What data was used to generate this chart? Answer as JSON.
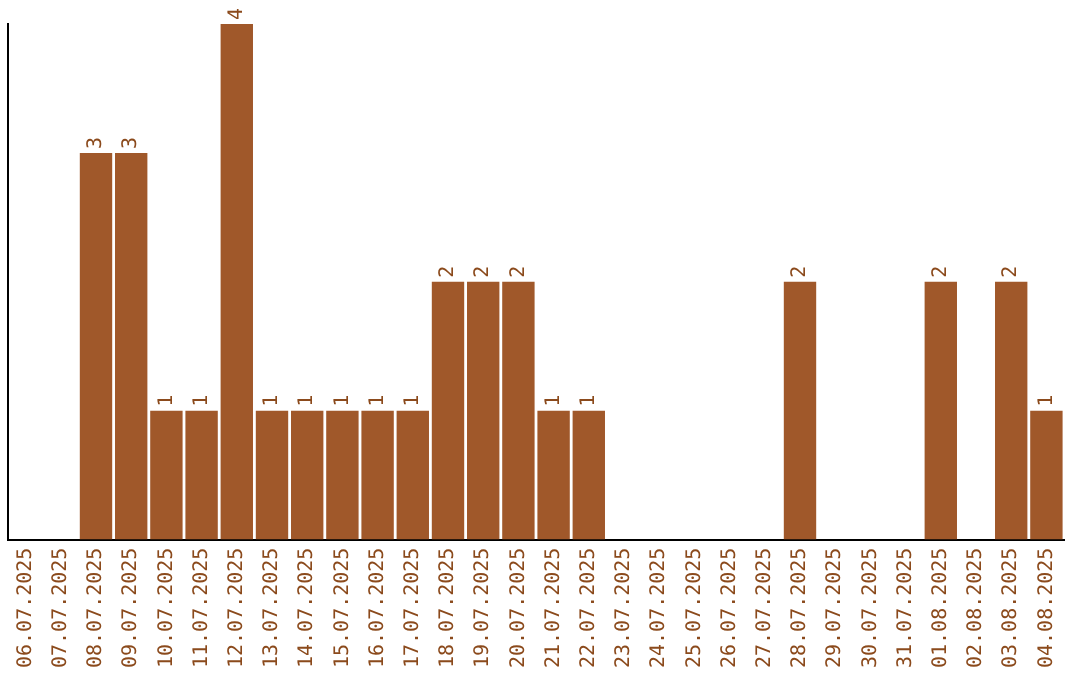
{
  "chart_data": {
    "type": "bar",
    "categories": [
      "06.07.2025",
      "07.07.2025",
      "08.07.2025",
      "09.07.2025",
      "10.07.2025",
      "11.07.2025",
      "12.07.2025",
      "13.07.2025",
      "14.07.2025",
      "15.07.2025",
      "16.07.2025",
      "17.07.2025",
      "18.07.2025",
      "19.07.2025",
      "20.07.2025",
      "21.07.2025",
      "22.07.2025",
      "23.07.2025",
      "24.07.2025",
      "25.07.2025",
      "26.07.2025",
      "27.07.2025",
      "28.07.2025",
      "29.07.2025",
      "30.07.2025",
      "31.07.2025",
      "01.08.2025",
      "02.08.2025",
      "03.08.2025",
      "04.08.2025"
    ],
    "values": [
      0,
      0,
      3,
      3,
      1,
      1,
      4,
      1,
      1,
      1,
      1,
      1,
      2,
      2,
      2,
      1,
      1,
      0,
      0,
      0,
      0,
      0,
      2,
      0,
      0,
      0,
      2,
      0,
      2,
      1
    ],
    "value_labels": [
      null,
      null,
      "3",
      "3",
      "1",
      "1",
      "4",
      "1",
      "1",
      "1",
      "1",
      "1",
      "2",
      "2",
      "2",
      "1",
      "1",
      null,
      null,
      null,
      null,
      null,
      "2",
      null,
      null,
      null,
      "2",
      null,
      "2",
      "1"
    ],
    "color": "#a0582a",
    "grid": false,
    "legend": false,
    "tick_labels": "x"
  }
}
